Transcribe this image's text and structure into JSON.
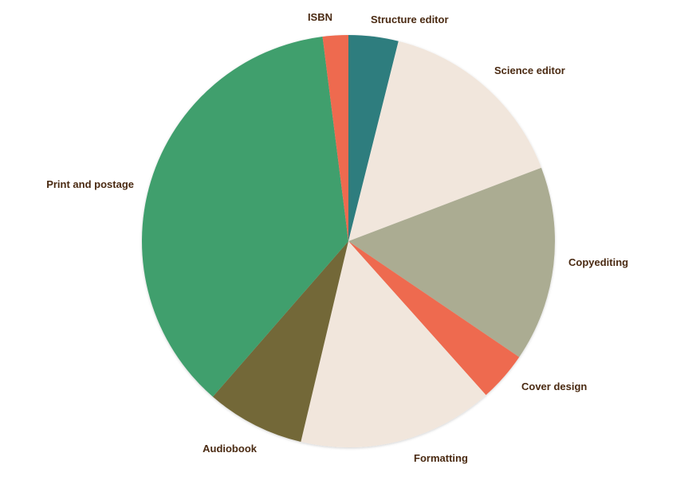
{
  "chart_data": {
    "type": "pie",
    "title": "",
    "start_angle_deg": 0,
    "direction": "clockwise",
    "legend": "none",
    "slices": [
      {
        "label": "Structure editor",
        "value": 3.9,
        "color": "#2e7d7e"
      },
      {
        "label": "Science editor",
        "value": 15.3,
        "color": "#f1e6dc"
      },
      {
        "label": "Copyediting",
        "value": 15.3,
        "color": "#abac92"
      },
      {
        "label": "Cover design",
        "value": 3.9,
        "color": "#ee6a4f"
      },
      {
        "label": "Formatting",
        "value": 15.3,
        "color": "#f1e6dc"
      },
      {
        "label": "Audiobook",
        "value": 7.7,
        "color": "#736839"
      },
      {
        "label": "Print and postage",
        "value": 36.6,
        "color": "#3f9f6d"
      },
      {
        "label": "ISBN",
        "value": 2.0,
        "color": "#ee6a4f"
      }
    ]
  }
}
